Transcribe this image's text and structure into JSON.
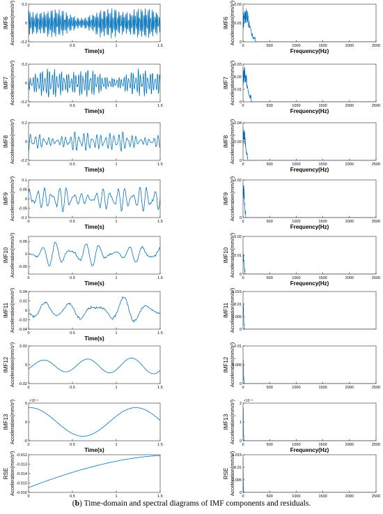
{
  "caption": {
    "label": "b",
    "text": " Time-domain and spectral diagrams of IMF components and residuals."
  },
  "colors": {
    "line": "#0072BD",
    "axis": "#262626"
  },
  "chart_data": [
    {
      "type": "line",
      "domain": "time",
      "row": 0,
      "imf": "IMF6",
      "ylabel": "Acceleration(mm/s²)",
      "xlabel": "Time(s)",
      "xlim": [
        0,
        1.5
      ],
      "xticks": [
        "0",
        "0.5",
        "1",
        "1.5"
      ],
      "ylim": [
        -0.2,
        0.2
      ],
      "yticks": [
        "0.2",
        "0",
        "-0.2"
      ],
      "signal": {
        "kind": "noise",
        "amp": 0.16,
        "cycles": 95
      }
    },
    {
      "type": "line",
      "domain": "frequency",
      "row": 0,
      "imf": "IMF6",
      "ylabel": "Acceleration(mm/s²)",
      "xlabel": "Frequency(Hz)",
      "xlim": [
        0,
        2500
      ],
      "xticks": [
        "0",
        "500",
        "1000",
        "1500",
        "2000",
        "2500"
      ],
      "ylim": [
        0,
        0.02
      ],
      "yticks": [
        "0.02",
        "0.01",
        "0"
      ],
      "spectrum": {
        "peak_hz": 60,
        "peak": 0.018,
        "width_hz": 90
      }
    },
    {
      "type": "line",
      "domain": "time",
      "row": 1,
      "imf": "IMF7",
      "ylabel": "Acceleration(mm/s²)",
      "xlabel": "Time(s)",
      "xlim": [
        0,
        1.5
      ],
      "xticks": [
        "0",
        "0.5",
        "1",
        "1.5"
      ],
      "ylim": [
        -0.2,
        0.2
      ],
      "yticks": [
        "0.2",
        "0",
        "-0.2"
      ],
      "signal": {
        "kind": "noise",
        "amp": 0.15,
        "cycles": 55
      }
    },
    {
      "type": "line",
      "domain": "frequency",
      "row": 1,
      "imf": "IMF7",
      "ylabel": "Acceleration(mm/s²)",
      "xlabel": "Frequency(Hz)",
      "xlim": [
        0,
        2500
      ],
      "xticks": [
        "0",
        "500",
        "1000",
        "1500",
        "2000",
        "2500"
      ],
      "ylim": [
        0,
        0.03
      ],
      "yticks": [
        "0.03",
        "0.02",
        "0.01",
        "0"
      ],
      "spectrum": {
        "peak_hz": 35,
        "peak": 0.028,
        "width_hz": 60
      }
    },
    {
      "type": "line",
      "domain": "time",
      "row": 2,
      "imf": "IMF8",
      "ylabel": "Acceleration(mm/s²)",
      "xlabel": "Time(s)",
      "xlim": [
        0,
        1.5
      ],
      "xticks": [
        "0",
        "0.5",
        "1",
        "1.5"
      ],
      "ylim": [
        -0.2,
        0.2
      ],
      "yticks": [
        "0.2",
        "0",
        "-0.2"
      ],
      "signal": {
        "kind": "noise",
        "amp": 0.11,
        "cycles": 30
      }
    },
    {
      "type": "line",
      "domain": "frequency",
      "row": 2,
      "imf": "IMF8",
      "ylabel": "Acceleration(mm/s²)",
      "xlabel": "Frequency(Hz)",
      "xlim": [
        0,
        2500
      ],
      "xticks": [
        "0",
        "500",
        "1000",
        "1500",
        "2000",
        "2500"
      ],
      "ylim": [
        0,
        0.04
      ],
      "yticks": [
        "0.04",
        "0.02",
        "0"
      ],
      "spectrum": {
        "peak_hz": 20,
        "peak": 0.035,
        "width_hz": 35
      }
    },
    {
      "type": "line",
      "domain": "time",
      "row": 3,
      "imf": "IMF9",
      "ylabel": "Acceleration(mm/s²)",
      "xlabel": "Time(s)",
      "xlim": [
        0,
        1.5
      ],
      "xticks": [
        "0",
        "0.5",
        "1",
        "1.5"
      ],
      "ylim": [
        -0.1,
        0.1
      ],
      "yticks": [
        "0.1",
        "0.05",
        "0",
        "-0.05",
        "-0.1"
      ],
      "signal": {
        "kind": "noise",
        "amp": 0.07,
        "cycles": 18
      }
    },
    {
      "type": "line",
      "domain": "frequency",
      "row": 3,
      "imf": "IMF9",
      "ylabel": "Acceleration(mm/s²)",
      "xlabel": "Frequency(Hz)",
      "xlim": [
        0,
        2500
      ],
      "xticks": [
        "0",
        "500",
        "1000",
        "1500",
        "2000",
        "2500"
      ],
      "ylim": [
        0,
        0.02
      ],
      "yticks": [
        "0.02",
        "0"
      ],
      "spectrum": {
        "peak_hz": 12,
        "peak": 0.019,
        "width_hz": 20
      }
    },
    {
      "type": "line",
      "domain": "time",
      "row": 4,
      "imf": "IMF10",
      "ylabel": "Acceleration(mm/s²)",
      "xlabel": "Time(s)",
      "xlim": [
        0,
        1.5
      ],
      "xticks": [
        "0",
        "0.5",
        "1",
        "1.5"
      ],
      "ylim": [
        -0.08,
        0.07
      ],
      "yticks": [
        "0.05",
        "0",
        "-0.05"
      ],
      "signal": {
        "kind": "noise",
        "amp": 0.045,
        "cycles": 9
      }
    },
    {
      "type": "line",
      "domain": "frequency",
      "row": 4,
      "imf": "IMF10",
      "ylabel": "Acceleration(mm/s²)",
      "xlabel": "Frequency(Hz)",
      "xlim": [
        0,
        2500
      ],
      "xticks": [
        "0",
        "500",
        "1000",
        "1500",
        "2000",
        "2500"
      ],
      "ylim": [
        0,
        0.02
      ],
      "yticks": [
        "0.02",
        "0.01",
        "0"
      ],
      "spectrum": {
        "peak_hz": 8,
        "peak": 0.012,
        "width_hz": 15
      }
    },
    {
      "type": "line",
      "domain": "time",
      "row": 5,
      "imf": "IMF11",
      "ylabel": "Acceleration(mm/s²)",
      "xlabel": "Time(s)",
      "xlim": [
        0,
        1.5
      ],
      "xticks": [
        "0",
        "0.5",
        "1",
        "1.5"
      ],
      "ylim": [
        -0.04,
        0.04
      ],
      "yticks": [
        "0.04",
        "0.02",
        "0",
        "-0.02",
        "-0.04"
      ],
      "signal": {
        "kind": "noise",
        "amp": 0.028,
        "cycles": 5
      }
    },
    {
      "type": "line",
      "domain": "frequency",
      "row": 5,
      "imf": "IMF11",
      "ylabel": "Acceleration(mm/s²)",
      "xlabel": "",
      "xlim": [
        0,
        2500
      ],
      "xticks": [],
      "ylim": [
        0,
        0.015
      ],
      "yticks": [
        "0.015",
        "0.01",
        "0.005",
        "0"
      ],
      "spectrum": {
        "peak_hz": 5,
        "peak": 0.011,
        "width_hz": 10
      }
    },
    {
      "type": "line",
      "domain": "time",
      "row": 6,
      "imf": "IMF12",
      "ylabel": "Acceleration(mm/s²)",
      "xlabel": "",
      "xlim": [
        0,
        1.5
      ],
      "xticks": [
        "0",
        "0.5",
        "1",
        "1.5"
      ],
      "ylim": [
        -0.02,
        0.02
      ],
      "yticks": [
        "0.02",
        "0",
        "-0.02"
      ],
      "signal": {
        "kind": "wave",
        "amp": 0.008,
        "cycles": 3
      }
    },
    {
      "type": "line",
      "domain": "frequency",
      "row": 6,
      "imf": "IMF12",
      "ylabel": "Acceleration(mm/s²)",
      "xlabel": "",
      "xlim": [
        0,
        2500
      ],
      "xticks": [
        "0",
        "500",
        "1000",
        "1500",
        "2000",
        "2500"
      ],
      "ylim": [
        0,
        0.01
      ],
      "yticks": [
        "0.01",
        "0.005",
        "0"
      ],
      "spectrum": {
        "peak_hz": 3,
        "peak": 0.0065,
        "width_hz": 8
      }
    },
    {
      "type": "line",
      "domain": "time",
      "row": 7,
      "imf": "IMF13",
      "ylabel": "Acceleration(mm/s²)",
      "xlabel": "Time(s)",
      "xlim": [
        0,
        1.5
      ],
      "xticks": [
        "0",
        "0.5",
        "1",
        "1.5"
      ],
      "ylim": [
        -5,
        5
      ],
      "yticks": [
        "5",
        "0",
        "-5"
      ],
      "exponent": "×10⁻³",
      "signal": {
        "kind": "cos",
        "amp": 3.8,
        "cycles": 0.78
      }
    },
    {
      "type": "line",
      "domain": "frequency",
      "row": 7,
      "imf": "IMF13",
      "ylabel": "Acceleration(mm/s²)",
      "xlabel": "Frequency(Hz)",
      "xlim": [
        0,
        2500
      ],
      "xticks": [
        "0",
        "500",
        "1000",
        "1500",
        "2000",
        "2500"
      ],
      "ylim": [
        0,
        2
      ],
      "yticks": [
        "2",
        "1",
        "0"
      ],
      "exponent": "×10⁻³",
      "spectrum": {
        "peak_hz": 2,
        "peak": 1.9,
        "width_hz": 6
      }
    },
    {
      "type": "line",
      "domain": "time",
      "row": 8,
      "imf": "RSE",
      "ylabel": "Acceleration(mm/s²)",
      "xlabel": "Time(s)",
      "xlim": [
        0,
        1.5
      ],
      "xticks": [
        "0",
        "0.5",
        "1",
        "1.5"
      ],
      "ylim": [
        -0.016,
        -0.012
      ],
      "yticks": [
        "-0.012",
        "-0.013",
        "-0.014",
        "-0.015",
        "-0.016"
      ],
      "signal": {
        "kind": "trend",
        "start": -0.0155,
        "end": -0.0121
      }
    },
    {
      "type": "line",
      "domain": "frequency",
      "row": 8,
      "imf": "RSE",
      "ylabel": "Acceleration(mm/s²)",
      "xlabel": "Frequency(Hz)",
      "xlim": [
        0,
        2500
      ],
      "xticks": [
        "0",
        "500",
        "1000",
        "1500",
        "2000",
        "2500"
      ],
      "ylim": [
        0,
        0.015
      ],
      "yticks": [
        "0.015",
        "0.01",
        "0.005",
        "0"
      ],
      "spectrum": {
        "peak_hz": 1,
        "peak": 0.014,
        "width_hz": 4
      }
    }
  ]
}
